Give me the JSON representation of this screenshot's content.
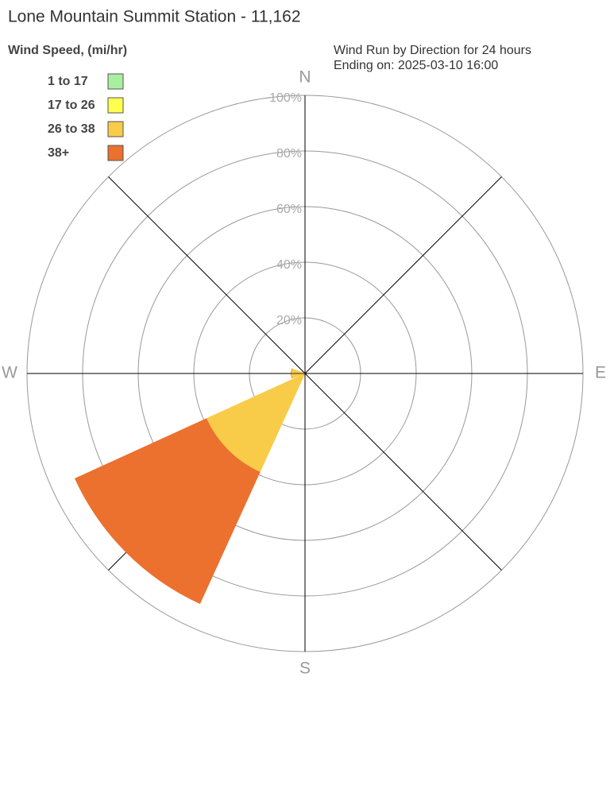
{
  "chart_data": {
    "type": "rose",
    "title": "Lone Mountain Summit Station - 11,162",
    "legend_title": "Wind Speed, (mi/hr)",
    "subtitle": [
      "Wind Run by Direction for 24 hours",
      "Ending on: 2025-03-10 16:00"
    ],
    "categories": [
      "N",
      null,
      "E",
      null,
      "S",
      null,
      "W",
      null
    ],
    "series": [
      {
        "name": "1 to 17",
        "color": "#a8f0a0",
        "values": [
          0,
          0,
          0,
          0,
          0,
          0,
          0,
          0
        ]
      },
      {
        "name": "17 to 26",
        "color": "#ffff50",
        "values": [
          0,
          0,
          0,
          0,
          0,
          0,
          0,
          0
        ]
      },
      {
        "name": "26 to 38",
        "color": "#f8cc48",
        "values": [
          0,
          0,
          0,
          0,
          0,
          39,
          5,
          0
        ]
      },
      {
        "name": "38+",
        "color": "#ec702e",
        "values": [
          0,
          0,
          0,
          0,
          0,
          52,
          0,
          0
        ]
      }
    ],
    "rlim": [
      0,
      100
    ],
    "rticks": [
      {
        "value": 20,
        "label": "20%"
      },
      {
        "value": 40,
        "label": "40%"
      },
      {
        "value": 60,
        "label": "60%"
      },
      {
        "value": 80,
        "label": "80%"
      },
      {
        "value": 100,
        "label": "100%"
      }
    ],
    "grid": true
  }
}
